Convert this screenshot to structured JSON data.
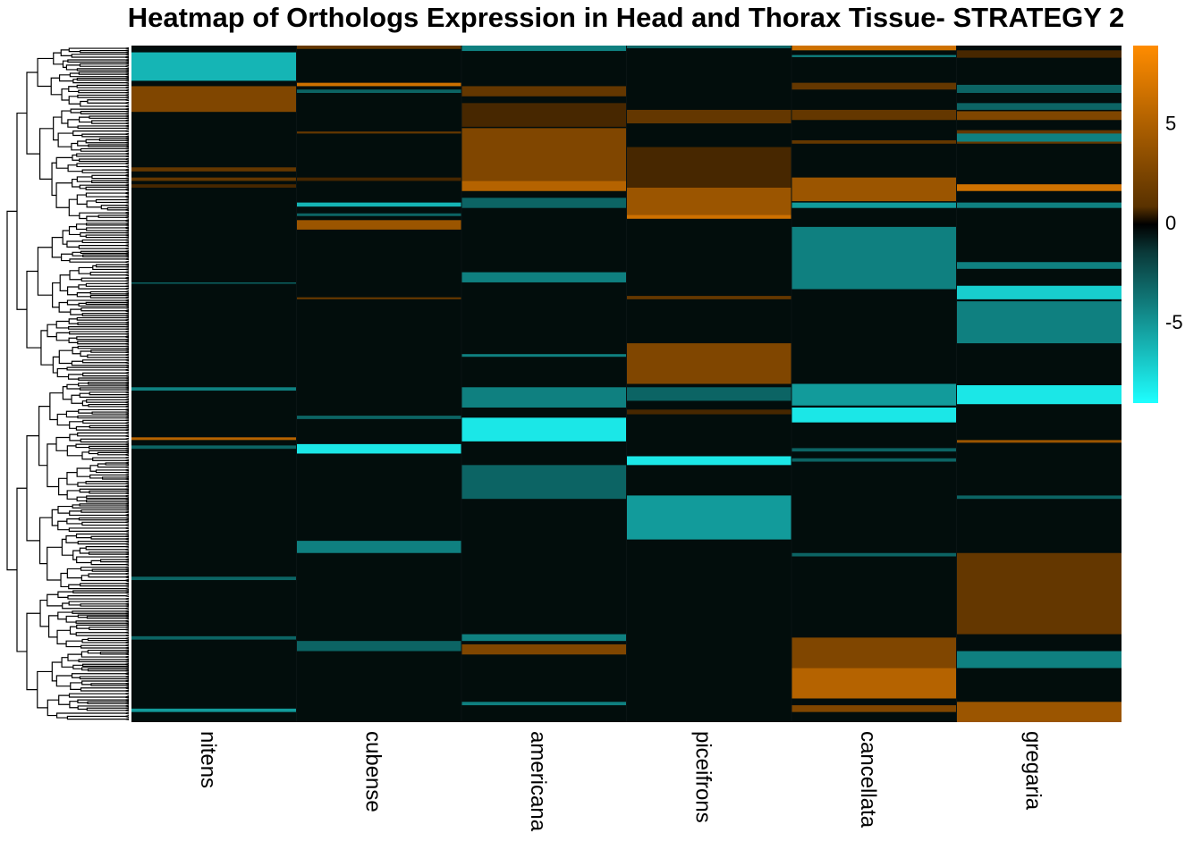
{
  "chart_data": {
    "type": "heatmap",
    "title": "Heatmap of Orthologs Expression in Head and Thorax Tissue- STRATEGY 2",
    "columns": [
      "nitens",
      "cubense",
      "americana",
      "piceifrons",
      "cancellata",
      "gregaria"
    ],
    "row_range": [
      0,
      1000
    ],
    "row_dendrogram": true,
    "color_scale": {
      "min": -9,
      "mid": 0,
      "max": 9,
      "low_color": "#1EFFFF",
      "mid_color": "#000000",
      "high_color": "#FF8C00",
      "ticks": [
        5,
        0,
        -5
      ],
      "tick_labels": [
        "5",
        "0",
        "-5"
      ]
    },
    "legend_placement": "top-right",
    "blocks": [
      [
        {
          "from": 10,
          "to": 52,
          "value": -6
        },
        {
          "from": 60,
          "to": 98,
          "value": 4
        },
        {
          "from": 180,
          "to": 186,
          "value": 3
        },
        {
          "from": 195,
          "to": 200,
          "value": 3
        },
        {
          "from": 205,
          "to": 210,
          "value": 2
        },
        {
          "from": 350,
          "to": 352,
          "value": -3
        },
        {
          "from": 505,
          "to": 510,
          "value": -4
        },
        {
          "from": 579,
          "to": 583,
          "value": 6
        },
        {
          "from": 591,
          "to": 596,
          "value": -3
        },
        {
          "from": 785,
          "to": 790,
          "value": -3
        },
        {
          "from": 873,
          "to": 878,
          "value": -3
        },
        {
          "from": 980,
          "to": 985,
          "value": -5
        }
      ],
      [
        {
          "from": 0,
          "to": 5,
          "value": 3
        },
        {
          "from": 55,
          "to": 60,
          "value": 7
        },
        {
          "from": 65,
          "to": 70,
          "value": -3
        },
        {
          "from": 127,
          "to": 130,
          "value": 3
        },
        {
          "from": 195,
          "to": 200,
          "value": 2
        },
        {
          "from": 232,
          "to": 238,
          "value": -6
        },
        {
          "from": 248,
          "to": 252,
          "value": -3
        },
        {
          "from": 258,
          "to": 272,
          "value": 5
        },
        {
          "from": 372,
          "to": 375,
          "value": 3
        },
        {
          "from": 547,
          "to": 552,
          "value": -3
        },
        {
          "from": 589,
          "to": 603,
          "value": -8
        },
        {
          "from": 732,
          "to": 750,
          "value": -4
        },
        {
          "from": 880,
          "to": 895,
          "value": -3
        }
      ],
      [
        {
          "from": 0,
          "to": 8,
          "value": -4
        },
        {
          "from": 60,
          "to": 75,
          "value": 3
        },
        {
          "from": 85,
          "to": 120,
          "value": 2
        },
        {
          "from": 122,
          "to": 200,
          "value": 4
        },
        {
          "from": 200,
          "to": 215,
          "value": 6
        },
        {
          "from": 225,
          "to": 240,
          "value": -3
        },
        {
          "from": 335,
          "to": 350,
          "value": -4
        },
        {
          "from": 456,
          "to": 460,
          "value": -4
        },
        {
          "from": 505,
          "to": 535,
          "value": -4
        },
        {
          "from": 550,
          "to": 585,
          "value": -8
        },
        {
          "from": 620,
          "to": 670,
          "value": -3
        },
        {
          "from": 870,
          "to": 880,
          "value": -4
        },
        {
          "from": 885,
          "to": 900,
          "value": 4
        },
        {
          "from": 970,
          "to": 975,
          "value": -4
        }
      ],
      [
        {
          "from": 0,
          "to": 4,
          "value": -3
        },
        {
          "from": 95,
          "to": 115,
          "value": 3
        },
        {
          "from": 150,
          "to": 210,
          "value": 2
        },
        {
          "from": 210,
          "to": 250,
          "value": 5
        },
        {
          "from": 250,
          "to": 256,
          "value": 7
        },
        {
          "from": 370,
          "to": 375,
          "value": 3
        },
        {
          "from": 440,
          "to": 500,
          "value": 4
        },
        {
          "from": 505,
          "to": 525,
          "value": -3
        },
        {
          "from": 538,
          "to": 545,
          "value": 2
        },
        {
          "from": 607,
          "to": 620,
          "value": -8
        },
        {
          "from": 665,
          "to": 730,
          "value": -5
        }
      ],
      [
        {
          "from": 0,
          "to": 7,
          "value": 7
        },
        {
          "from": 14,
          "to": 17,
          "value": -4
        },
        {
          "from": 55,
          "to": 65,
          "value": 3
        },
        {
          "from": 95,
          "to": 110,
          "value": 3
        },
        {
          "from": 140,
          "to": 145,
          "value": 3
        },
        {
          "from": 195,
          "to": 230,
          "value": 5
        },
        {
          "from": 232,
          "to": 240,
          "value": -5
        },
        {
          "from": 268,
          "to": 360,
          "value": -4
        },
        {
          "from": 500,
          "to": 532,
          "value": -5
        },
        {
          "from": 535,
          "to": 557,
          "value": -8
        },
        {
          "from": 595,
          "to": 600,
          "value": -3
        },
        {
          "from": 610,
          "to": 615,
          "value": -3
        },
        {
          "from": 750,
          "to": 755,
          "value": -3
        },
        {
          "from": 875,
          "to": 920,
          "value": 4
        },
        {
          "from": 920,
          "to": 965,
          "value": 6
        },
        {
          "from": 975,
          "to": 985,
          "value": 4
        }
      ],
      [
        {
          "from": 7,
          "to": 18,
          "value": 2
        },
        {
          "from": 58,
          "to": 70,
          "value": -3
        },
        {
          "from": 85,
          "to": 95,
          "value": -3
        },
        {
          "from": 97,
          "to": 110,
          "value": 4
        },
        {
          "from": 125,
          "to": 145,
          "value": 3
        },
        {
          "from": 130,
          "to": 142,
          "value": -4
        },
        {
          "from": 205,
          "to": 215,
          "value": 7
        },
        {
          "from": 232,
          "to": 240,
          "value": -4
        },
        {
          "from": 320,
          "to": 330,
          "value": -4
        },
        {
          "from": 355,
          "to": 375,
          "value": -7
        },
        {
          "from": 378,
          "to": 440,
          "value": -4
        },
        {
          "from": 502,
          "to": 530,
          "value": -8
        },
        {
          "from": 583,
          "to": 587,
          "value": 5
        },
        {
          "from": 665,
          "to": 670,
          "value": -3
        },
        {
          "from": 750,
          "to": 870,
          "value": 3
        },
        {
          "from": 895,
          "to": 920,
          "value": -4
        },
        {
          "from": 970,
          "to": 1000,
          "value": 5
        }
      ]
    ]
  }
}
